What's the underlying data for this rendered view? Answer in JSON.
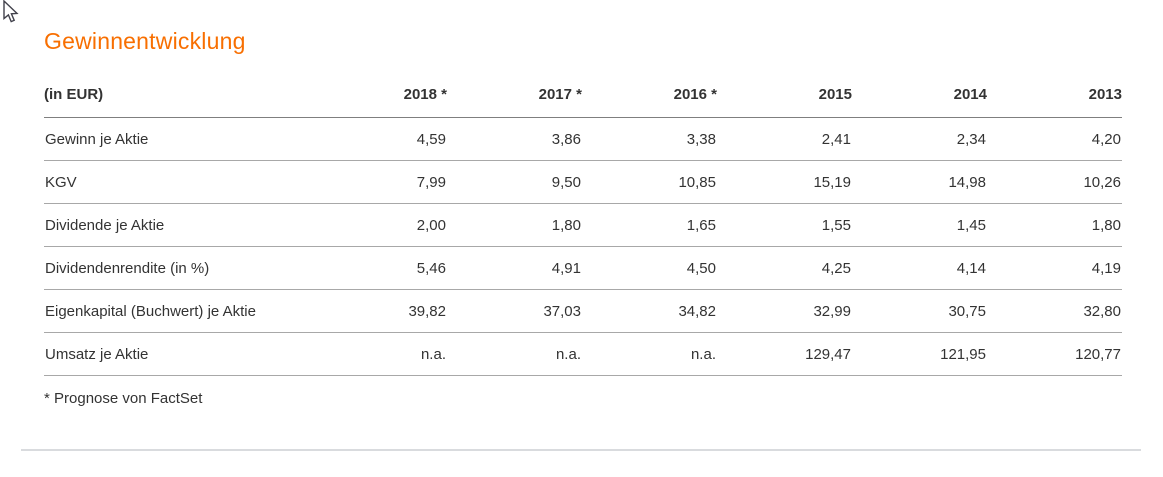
{
  "page": {
    "title": "Gewinnentwicklung",
    "footnote": "* Prognose von FactSet"
  },
  "icons": {
    "cursor": "mouse-arrow-pointer"
  },
  "colors": {
    "accent_orange": "#f86f01",
    "text": "#333333",
    "header_rule": "#7f7f7f",
    "row_rule": "#a8a8a8",
    "bottom_divider": "#d9dbde",
    "background": "#ffffff"
  },
  "table": {
    "unit_label": "(in EUR)",
    "columns": [
      "2018 *",
      "2017 *",
      "2016 *",
      "2015",
      "2014",
      "2013"
    ],
    "rows": [
      {
        "label": "Gewinn je Aktie",
        "values": [
          "4,59",
          "3,86",
          "3,38",
          "2,41",
          "2,34",
          "4,20"
        ]
      },
      {
        "label": "KGV",
        "values": [
          "7,99",
          "9,50",
          "10,85",
          "15,19",
          "14,98",
          "10,26"
        ]
      },
      {
        "label": "Dividende je Aktie",
        "values": [
          "2,00",
          "1,80",
          "1,65",
          "1,55",
          "1,45",
          "1,80"
        ]
      },
      {
        "label": "Dividendenrendite (in %)",
        "values": [
          "5,46",
          "4,91",
          "4,50",
          "4,25",
          "4,14",
          "4,19"
        ]
      },
      {
        "label": "Eigenkapital (Buchwert) je Aktie",
        "values": [
          "39,82",
          "37,03",
          "34,82",
          "32,99",
          "30,75",
          "32,80"
        ]
      },
      {
        "label": "Umsatz je Aktie",
        "values": [
          "n.a.",
          "n.a.",
          "n.a.",
          "129,47",
          "121,95",
          "120,77"
        ]
      }
    ]
  }
}
